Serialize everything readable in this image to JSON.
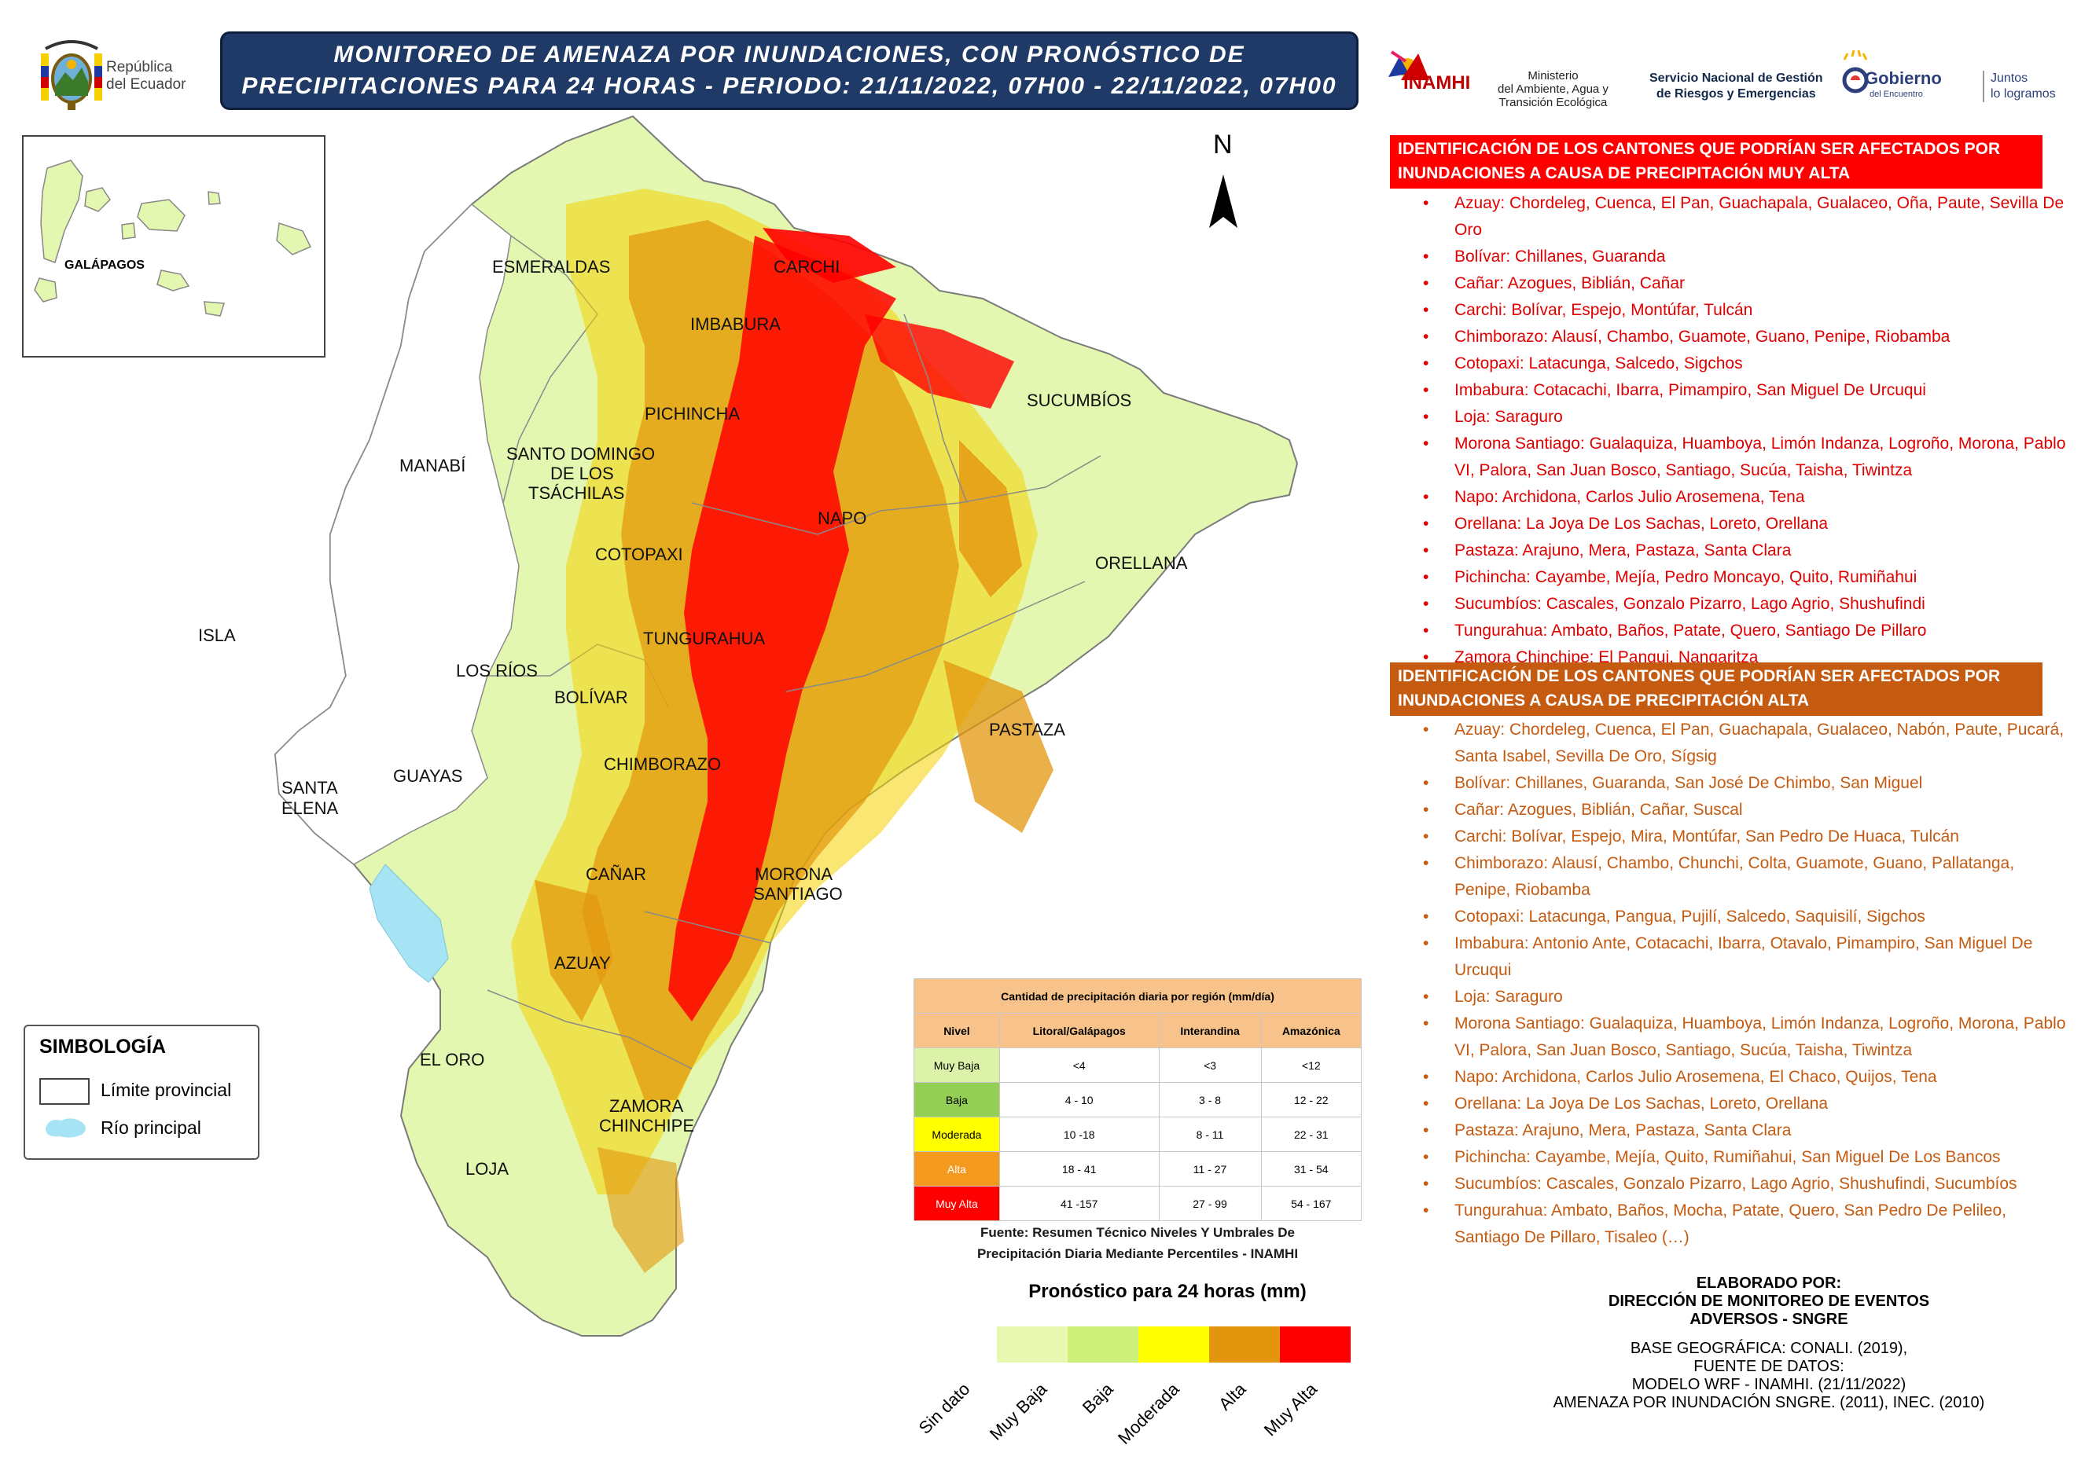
{
  "header": {
    "line1": "MONITOREO DE AMENAZA POR INUNDACIONES, CON PRONÓSTICO DE",
    "line2": "PRECIPITACIONES  PARA 24  HORAS - PERIODO: 21/11/2022, 07H00 - 22/11/2022, 07H00"
  },
  "logos": {
    "republica": [
      "República",
      "del Ecuador"
    ],
    "inamhi": "INAMHI",
    "ministerio": [
      "Ministerio",
      "del Ambiente, Agua y",
      "Transición Ecológica"
    ],
    "sngre": [
      "Servicio Nacional de Gestión",
      "de Riesgos y Emergencias"
    ],
    "gobierno": "Gobierno",
    "gobierno_sub": "del Encuentro",
    "juntos": [
      "Juntos",
      "lo logramos"
    ]
  },
  "map": {
    "north": "N",
    "inset_label": "GALÁPAGOS",
    "provinces": [
      {
        "name": "ESMERALDAS"
      },
      {
        "name": "CARCHI"
      },
      {
        "name": "IMBABURA"
      },
      {
        "name": "SUCUMBÍOS"
      },
      {
        "name": "PICHINCHA"
      },
      {
        "name": "MANABÍ"
      },
      {
        "name": "SANTO DOMINGO"
      },
      {
        "name": "DE LOS"
      },
      {
        "name": "TSÁCHILAS"
      },
      {
        "name": "NAPO"
      },
      {
        "name": "COTOPAXI"
      },
      {
        "name": "ORELLANA"
      },
      {
        "name": "ISLA"
      },
      {
        "name": "TUNGURAHUA"
      },
      {
        "name": "LOS RÍOS"
      },
      {
        "name": "BOLÍVAR"
      },
      {
        "name": "PASTAZA"
      },
      {
        "name": "CHIMBORAZO"
      },
      {
        "name": "SANTA"
      },
      {
        "name": "ELENA"
      },
      {
        "name": "GUAYAS"
      },
      {
        "name": "CAÑAR"
      },
      {
        "name": "MORONA"
      },
      {
        "name": "SANTIAGO"
      },
      {
        "name": "AZUAY"
      },
      {
        "name": "EL ORO"
      },
      {
        "name": "ZAMORA"
      },
      {
        "name": "CHINCHIPE"
      },
      {
        "name": "LOJA"
      }
    ]
  },
  "simbologia": {
    "title": "SIMBOLOGÍA",
    "limite": "Límite provincial",
    "rio": "Río principal"
  },
  "precip_table": {
    "title": "Cantidad de precipitación diaria por región (mm/día)",
    "headers": [
      "Nivel",
      "Litoral/Galápagos",
      "Interandina",
      "Amazónica"
    ],
    "rows": [
      [
        "Muy Baja",
        "<4",
        "<3",
        "<12"
      ],
      [
        "Baja",
        "4 - 10",
        "3 - 8",
        "12 - 22"
      ],
      [
        "Moderada",
        "10 -18",
        "8 - 11",
        "22 - 31"
      ],
      [
        "Alta",
        "18 - 41",
        "11 - 27",
        "31 - 54"
      ],
      [
        "Muy Alta",
        "41 -157",
        "27 - 99",
        "54 - 167"
      ]
    ],
    "fuente": [
      "Fuente: Resumen Técnico Niveles Y Umbrales De",
      "Precipitación Diaria Mediante Percentiles - INAMHI"
    ]
  },
  "forecast_legend": {
    "title": "Pronóstico para 24 horas (mm)",
    "items": [
      {
        "label": "Sin dato",
        "color": "#ffffff"
      },
      {
        "label": "Muy Baja",
        "color": "#e9f8b0"
      },
      {
        "label": "Baja",
        "color": "#cdf07a"
      },
      {
        "label": "Moderada",
        "color": "#ffff00"
      },
      {
        "label": "Alta",
        "color": "#e3960d"
      },
      {
        "label": "Muy Alta",
        "color": "#ff0000"
      }
    ]
  },
  "muy_alta": {
    "header": [
      "IDENTIFICACIÓN DE LOS CANTONES QUE PODRÍAN SER AFECTADOS POR",
      "INUNDACIONES A CAUSA DE  PRECIPITACIÓN MUY ALTA"
    ],
    "items": [
      "Azuay: Chordeleg, Cuenca, El Pan, Guachapala, Gualaceo, Oña, Paute, Sevilla De Oro",
      "Bolívar: Chillanes, Guaranda",
      "Cañar: Azogues, Biblián, Cañar",
      "Carchi: Bolívar, Espejo, Montúfar, Tulcán",
      "Chimborazo: Alausí, Chambo, Guamote, Guano, Penipe, Riobamba",
      "Cotopaxi: Latacunga, Salcedo, Sigchos",
      "Imbabura: Cotacachi, Ibarra, Pimampiro, San Miguel De Urcuqui",
      "Loja: Saraguro",
      "Morona Santiago: Gualaquiza, Huamboya, Limón Indanza, Logroño, Morona, Pablo VI, Palora, San Juan Bosco, Santiago, Sucúa, Taisha, Tiwintza",
      "Napo: Archidona, Carlos Julio Arosemena, Tena",
      "Orellana: La Joya De Los Sachas, Loreto, Orellana",
      "Pastaza: Arajuno, Mera, Pastaza, Santa Clara",
      "Pichincha: Cayambe, Mejía, Pedro Moncayo, Quito, Rumiñahui",
      "Sucumbíos: Cascales, Gonzalo Pizarro, Lago Agrio, Shushufindi",
      "Tungurahua: Ambato, Baños, Patate, Quero, Santiago De Pillaro",
      "Zamora Chinchipe: El Pangui, Nangaritza"
    ]
  },
  "alta": {
    "header": [
      "IDENTIFICACIÓN DE LOS CANTONES QUE PODRÍAN SER AFECTADOS POR",
      "INUNDACIONES A CAUSA DE  PRECIPITACIÓN  ALTA"
    ],
    "items": [
      "Azuay: Chordeleg, Cuenca, El Pan, Guachapala, Gualaceo, Nabón, Paute, Pucará, Santa Isabel, Sevilla De Oro, Sígsig",
      "Bolívar: Chillanes, Guaranda, San José De Chimbo, San Miguel",
      "Cañar: Azogues, Biblián, Cañar, Suscal",
      "Carchi: Bolívar, Espejo, Mira, Montúfar, San Pedro De Huaca, Tulcán",
      "Chimborazo: Alausí, Chambo, Chunchi, Colta, Guamote, Guano, Pallatanga, Penipe, Riobamba",
      "Cotopaxi: Latacunga, Pangua, Pujilí, Salcedo, Saquisilí, Sigchos",
      "Imbabura: Antonio Ante, Cotacachi, Ibarra, Otavalo, Pimampiro, San Miguel De Urcuqui",
      "Loja: Saraguro",
      "Morona Santiago: Gualaquiza, Huamboya, Limón Indanza, Logroño, Morona, Pablo VI, Palora, San Juan Bosco, Santiago, Sucúa, Taisha, Tiwintza",
      "Napo: Archidona, Carlos Julio Arosemena, El Chaco, Quijos, Tena",
      "Orellana: La Joya De Los Sachas, Loreto, Orellana",
      "Pastaza: Arajuno, Mera, Pastaza, Santa Clara",
      "Pichincha: Cayambe, Mejía, Quito, Rumiñahui, San Miguel De Los Bancos",
      "Sucumbíos: Cascales, Gonzalo Pizarro, Lago Agrio, Shushufindi, Sucumbíos",
      "Tungurahua: Ambato, Baños, Mocha, Patate, Quero, San Pedro De Pelileo, Santiago De Pillaro, Tisaleo (…)"
    ]
  },
  "credits": {
    "elaborado": [
      "ELABORADO POR:",
      "DIRECCIÓN DE MONITOREO DE EVENTOS",
      "ADVERSOS - SNGRE"
    ],
    "base": [
      "BASE GEOGRÁFICA: CONALI. (2019),",
      "FUENTE DE DATOS:",
      "MODELO WRF - INAMHI. (21/11/2022)",
      "AMENAZA POR INUNDACIÓN SNGRE. (2011), INEC. (2010)"
    ]
  }
}
